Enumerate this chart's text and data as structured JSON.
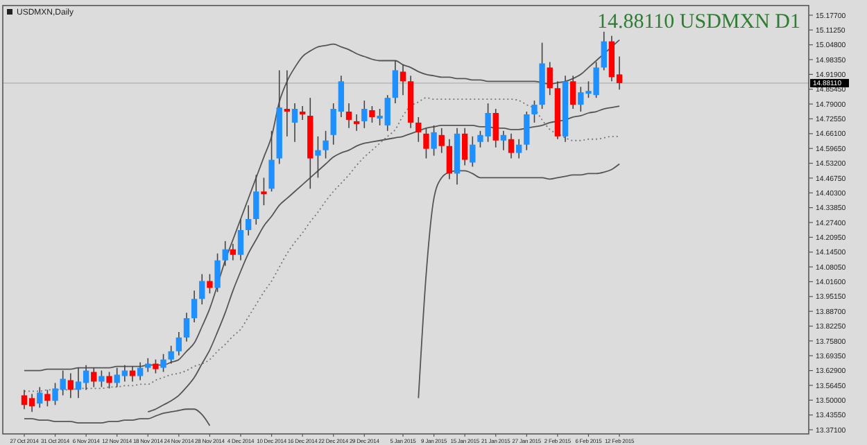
{
  "chart_data": {
    "type": "candlestick",
    "title": "USDMXN,Daily",
    "annotations": [
      "14.88110 USDMXN D1"
    ],
    "categories": [
      "27 Oct 2014",
      null,
      null,
      null,
      "31 Oct 2014",
      null,
      null,
      null,
      "6 Nov 2014",
      null,
      null,
      null,
      "12 Nov 2014",
      null,
      null,
      null,
      "18 Nov 2014",
      null,
      null,
      null,
      "24 Nov 2014",
      null,
      null,
      null,
      "28 Nov 2014",
      null,
      null,
      null,
      "4 Dec 2014",
      null,
      null,
      null,
      "10 Dec 2014",
      null,
      null,
      null,
      "16 Dec 2014",
      null,
      null,
      null,
      "22 Dec 2014",
      null,
      null,
      null,
      "29 Dec 2014",
      null,
      null,
      null,
      null,
      "5 Jan 2015",
      null,
      null,
      null,
      "9 Jan 2015",
      null,
      null,
      null,
      "15 Jan 2015",
      null,
      null,
      null,
      "21 Jan 2015",
      null,
      null,
      null,
      "27 Jan 2015",
      null,
      null,
      null,
      "2 Feb 2015",
      null,
      null,
      null,
      "6 Feb 2015",
      null,
      null,
      null,
      "12 Feb 2015"
    ],
    "ohlc": [
      [
        13.521,
        13.545,
        13.461,
        13.479
      ],
      [
        13.509,
        13.527,
        13.449,
        13.473
      ],
      [
        13.485,
        13.557,
        13.467,
        13.533
      ],
      [
        13.527,
        13.545,
        13.473,
        13.497
      ],
      [
        13.497,
        13.575,
        13.479,
        13.551
      ],
      [
        13.545,
        13.629,
        13.521,
        13.593
      ],
      [
        13.587,
        13.617,
        13.509,
        13.545
      ],
      [
        13.545,
        13.641,
        13.509,
        13.581
      ],
      [
        13.575,
        13.653,
        13.545,
        13.629
      ],
      [
        13.623,
        13.641,
        13.557,
        13.581
      ],
      [
        13.581,
        13.629,
        13.557,
        13.605
      ],
      [
        13.605,
        13.623,
        13.551,
        13.575
      ],
      [
        13.575,
        13.641,
        13.557,
        13.611
      ],
      [
        13.605,
        13.653,
        13.581,
        13.629
      ],
      [
        13.629,
        13.647,
        13.581,
        13.605
      ],
      [
        13.605,
        13.665,
        13.587,
        13.641
      ],
      [
        13.641,
        13.683,
        13.623,
        13.659
      ],
      [
        13.659,
        13.677,
        13.617,
        13.635
      ],
      [
        13.641,
        13.701,
        13.623,
        13.677
      ],
      [
        13.677,
        13.737,
        13.659,
        13.713
      ],
      [
        13.713,
        13.797,
        13.695,
        13.773
      ],
      [
        13.773,
        13.881,
        13.755,
        13.857
      ],
      [
        13.857,
        13.977,
        13.839,
        13.941
      ],
      [
        13.941,
        14.049,
        13.917,
        14.019
      ],
      [
        14.019,
        14.049,
        13.965,
        13.989
      ],
      [
        13.989,
        14.139,
        13.971,
        14.109
      ],
      [
        14.109,
        14.193,
        14.085,
        14.157
      ],
      [
        14.157,
        14.181,
        14.109,
        14.133
      ],
      [
        14.133,
        14.289,
        14.109,
        14.241
      ],
      [
        14.241,
        14.349,
        14.217,
        14.289
      ],
      [
        14.289,
        14.481,
        14.265,
        14.409
      ],
      [
        14.409,
        14.469,
        14.349,
        14.397
      ],
      [
        14.421,
        14.673,
        14.409,
        14.547
      ],
      [
        14.553,
        14.937,
        14.529,
        14.775
      ],
      [
        14.769,
        14.937,
        14.649,
        14.757
      ],
      [
        14.709,
        14.793,
        14.625,
        14.769
      ],
      [
        14.757,
        14.781,
        14.721,
        14.745
      ],
      [
        14.739,
        14.817,
        14.421,
        14.553
      ],
      [
        14.565,
        14.649,
        14.469,
        14.589
      ],
      [
        14.589,
        14.673,
        14.553,
        14.631
      ],
      [
        14.655,
        14.793,
        14.613,
        14.769
      ],
      [
        14.757,
        14.913,
        14.733,
        14.889
      ],
      [
        14.757,
        14.793,
        14.685,
        14.721
      ],
      [
        14.715,
        14.745,
        14.673,
        14.703
      ],
      [
        14.715,
        14.805,
        14.685,
        14.769
      ],
      [
        14.763,
        14.781,
        14.709,
        14.733
      ],
      [
        14.727,
        14.769,
        14.697,
        14.739
      ],
      [
        14.697,
        14.829,
        14.673,
        14.817
      ],
      [
        14.817,
        14.979,
        14.793,
        14.937
      ],
      [
        14.931,
        14.961,
        14.829,
        14.889
      ],
      [
        14.889,
        14.913,
        14.685,
        14.709
      ],
      [
        14.709,
        14.733,
        14.625,
        14.667
      ],
      [
        14.661,
        14.685,
        14.553,
        14.595
      ],
      [
        14.595,
        14.697,
        14.565,
        14.667
      ],
      [
        14.655,
        14.685,
        14.577,
        14.607
      ],
      [
        14.607,
        14.637,
        14.463,
        14.487
      ],
      [
        14.487,
        14.685,
        14.439,
        14.661
      ],
      [
        14.661,
        14.685,
        14.523,
        14.547
      ],
      [
        14.535,
        14.649,
        14.517,
        14.613
      ],
      [
        14.625,
        14.673,
        14.601,
        14.655
      ],
      [
        14.649,
        14.793,
        14.625,
        14.751
      ],
      [
        14.751,
        14.769,
        14.601,
        14.631
      ],
      [
        14.631,
        14.673,
        14.589,
        14.655
      ],
      [
        14.637,
        14.661,
        14.553,
        14.577
      ],
      [
        14.577,
        14.637,
        14.553,
        14.613
      ],
      [
        14.613,
        14.757,
        14.589,
        14.745
      ],
      [
        14.745,
        14.805,
        14.709,
        14.787
      ],
      [
        14.787,
        15.057,
        14.769,
        14.967
      ],
      [
        14.949,
        14.973,
        14.829,
        14.859
      ],
      [
        14.859,
        14.889,
        14.637,
        14.649
      ],
      [
        14.649,
        14.913,
        14.625,
        14.889
      ],
      [
        14.889,
        14.913,
        14.769,
        14.787
      ],
      [
        14.787,
        14.865,
        14.757,
        14.841
      ],
      [
        14.835,
        14.889,
        14.817,
        14.847
      ],
      [
        14.829,
        14.973,
        14.817,
        14.949
      ],
      [
        14.949,
        15.105,
        14.937,
        15.063
      ],
      [
        15.063,
        15.087,
        14.889,
        14.907
      ],
      [
        14.919,
        14.997,
        14.853,
        14.881
      ]
    ],
    "colors": [
      "#ff0000",
      "#ff0000",
      "#1e90ff",
      "#ff0000",
      "#1e90ff",
      "#1e90ff",
      "#ff0000",
      "#1e90ff",
      "#1e90ff",
      "#ff0000",
      "#1e90ff",
      "#ff0000",
      "#1e90ff",
      "#1e90ff",
      "#ff0000",
      "#1e90ff",
      "#1e90ff",
      "#ff0000",
      "#1e90ff",
      "#1e90ff",
      "#1e90ff",
      "#1e90ff",
      "#1e90ff",
      "#1e90ff",
      "#ff0000",
      "#1e90ff",
      "#1e90ff",
      "#ff0000",
      "#1e90ff",
      "#1e90ff",
      "#1e90ff",
      "#ff0000",
      "#1e90ff",
      "#1e90ff",
      "#ff0000",
      "#1e90ff",
      "#ff0000",
      "#ff0000",
      "#1e90ff",
      "#1e90ff",
      "#1e90ff",
      "#1e90ff",
      "#ff0000",
      "#ff0000",
      "#1e90ff",
      "#ff0000",
      "#1e90ff",
      "#1e90ff",
      "#1e90ff",
      "#ff0000",
      "#ff0000",
      "#ff0000",
      "#ff0000",
      "#1e90ff",
      "#ff0000",
      "#ff0000",
      "#1e90ff",
      "#ff0000",
      "#1e90ff",
      "#1e90ff",
      "#1e90ff",
      "#ff0000",
      "#1e90ff",
      "#ff0000",
      "#1e90ff",
      "#1e90ff",
      "#1e90ff",
      "#1e90ff",
      "#ff0000",
      "#ff0000",
      "#1e90ff",
      "#ff0000",
      "#1e90ff",
      "#1e90ff",
      "#1e90ff",
      "#1e90ff",
      "#ff0000",
      "#ff0000"
    ],
    "series": [
      {
        "type": "line",
        "color": "#555555",
        "line_style": "solid",
        "values": [
          13.629,
          13.629,
          13.629,
          13.635,
          13.635,
          13.635,
          13.635,
          13.641,
          13.641,
          13.641,
          13.641,
          13.641,
          13.647,
          13.647,
          13.647,
          13.647,
          13.653,
          13.653,
          13.653,
          13.665,
          13.677,
          13.713,
          13.749,
          13.821,
          13.899,
          14.001,
          14.109,
          14.199,
          14.289,
          14.379,
          14.469,
          14.559,
          14.649,
          14.799,
          14.889,
          14.949,
          14.997,
          15.021,
          15.039,
          15.045,
          15.051,
          15.039,
          15.027,
          15.009,
          14.997,
          14.985,
          14.979,
          14.979,
          14.979,
          14.961,
          14.949,
          14.931,
          14.919,
          14.913,
          14.907,
          14.907,
          14.901,
          14.901,
          14.895,
          14.895,
          14.889,
          14.889,
          14.889,
          14.889,
          14.889,
          14.889,
          14.889,
          14.883,
          14.877,
          14.883,
          14.889,
          14.901,
          14.919,
          14.949,
          14.979,
          15.009,
          15.039,
          15.069
        ]
      },
      {
        "type": "line",
        "color": "#777777",
        "line_style": "dotted",
        "values": [
          13.539,
          13.539,
          13.539,
          13.545,
          13.545,
          13.545,
          13.545,
          13.551,
          13.551,
          13.551,
          13.551,
          13.557,
          13.557,
          13.563,
          13.563,
          13.569,
          13.569,
          13.587,
          13.599,
          13.611,
          13.617,
          13.629,
          13.647,
          13.659,
          13.677,
          13.713,
          13.743,
          13.779,
          13.809,
          13.863,
          13.917,
          13.971,
          14.019,
          14.079,
          14.139,
          14.187,
          14.229,
          14.277,
          14.319,
          14.367,
          14.409,
          14.445,
          14.481,
          14.523,
          14.559,
          14.589,
          14.619,
          14.649,
          14.679,
          14.739,
          14.781,
          14.799,
          14.817,
          14.811,
          14.811,
          14.811,
          14.811,
          14.811,
          14.811,
          14.811,
          14.811,
          14.811,
          14.811,
          14.811,
          14.805,
          14.787,
          14.769,
          14.721,
          14.679,
          14.661,
          14.643,
          14.631,
          14.631,
          14.637,
          14.637,
          14.643,
          14.649,
          14.649
        ]
      },
      {
        "type": "line",
        "color": "#555555",
        "line_style": "solid",
        "values": [
          null,
          null,
          null,
          null,
          null,
          null,
          null,
          null,
          null,
          null,
          null,
          null,
          null,
          null,
          null,
          null,
          13.449,
          13.461,
          13.479,
          13.497,
          13.521,
          13.557,
          13.599,
          13.659,
          13.719,
          13.797,
          13.881,
          13.977,
          14.061,
          14.139,
          14.199,
          14.259,
          14.301,
          14.349,
          14.379,
          14.409,
          14.439,
          14.469,
          14.499,
          14.529,
          14.559,
          14.577,
          14.589,
          14.607,
          14.619,
          14.625,
          14.631,
          14.637,
          14.643,
          14.649,
          14.661,
          14.673,
          14.685,
          14.691,
          14.697,
          14.697,
          14.697,
          14.697,
          14.697,
          14.691,
          14.691,
          14.685,
          14.685,
          14.679,
          14.679,
          14.685,
          14.691,
          14.697,
          14.709,
          14.715,
          14.721,
          14.733,
          14.739,
          14.751,
          14.757,
          14.769,
          14.775,
          14.781
        ]
      },
      {
        "type": "line",
        "color": "#555555",
        "line_style": "solid",
        "values": [
          13.419,
          13.419,
          13.413,
          13.413,
          13.407,
          13.407,
          13.407,
          13.401,
          13.401,
          13.401,
          13.401,
          13.407,
          13.407,
          13.413,
          13.413,
          13.419,
          13.419,
          13.431,
          13.443,
          13.449,
          13.455,
          13.461,
          13.461,
          13.437,
          13.389,
          null,
          null,
          null,
          null,
          null,
          null,
          null,
          null,
          null,
          null,
          null,
          null,
          null,
          null,
          null,
          null,
          null,
          null,
          null,
          null,
          null,
          null,
          null,
          null,
          null,
          null,
          13.509,
          14.049,
          14.379,
          14.469,
          14.493,
          14.499,
          14.499,
          14.487,
          14.469,
          14.469,
          14.469,
          14.469,
          14.469,
          14.469,
          14.469,
          14.469,
          14.469,
          14.463,
          14.469,
          14.475,
          14.481,
          14.481,
          14.487,
          14.487,
          14.493,
          14.505,
          14.529
        ]
      }
    ],
    "ylim": [
      13.353,
      15.219
    ],
    "yticks": [
      {
        "value": 15.177,
        "label": "15.17700"
      },
      {
        "value": 15.1125,
        "label": "15.11250"
      },
      {
        "value": 15.048,
        "label": "15.04800"
      },
      {
        "value": 14.9835,
        "label": "14.98350"
      },
      {
        "value": 14.919,
        "label": "14.91900"
      },
      {
        "value": 14.8545,
        "label": "14.85450"
      },
      {
        "value": 14.79,
        "label": "14.79000"
      },
      {
        "value": 14.7255,
        "label": "14.72550"
      },
      {
        "value": 14.661,
        "label": "14.66100"
      },
      {
        "value": 14.5965,
        "label": "14.59650"
      },
      {
        "value": 14.532,
        "label": "14.53200"
      },
      {
        "value": 14.4675,
        "label": "14.46750"
      },
      {
        "value": 14.403,
        "label": "14.40300"
      },
      {
        "value": 14.3385,
        "label": "14.33850"
      },
      {
        "value": 14.274,
        "label": "14.27400"
      },
      {
        "value": 14.2095,
        "label": "14.20950"
      },
      {
        "value": 14.145,
        "label": "14.14500"
      },
      {
        "value": 14.0805,
        "label": "14.08050"
      },
      {
        "value": 14.016,
        "label": "14.01600"
      },
      {
        "value": 13.9515,
        "label": "13.95150"
      },
      {
        "value": 13.887,
        "label": "13.88700"
      },
      {
        "value": 13.8225,
        "label": "13.82250"
      },
      {
        "value": 13.758,
        "label": "13.75800"
      },
      {
        "value": 13.6935,
        "label": "13.69350"
      },
      {
        "value": 13.629,
        "label": "13.62900"
      },
      {
        "value": 13.5645,
        "label": "13.56450"
      },
      {
        "value": 13.5,
        "label": "13.50000"
      },
      {
        "value": 13.4355,
        "label": "13.43550"
      },
      {
        "value": 13.371,
        "label": "13.37100"
      }
    ],
    "ref_lines": [
      {
        "axis": "y",
        "value": 14.8811,
        "label": "14.88110",
        "color": "#bdbdbd"
      }
    ],
    "marker": "none"
  }
}
